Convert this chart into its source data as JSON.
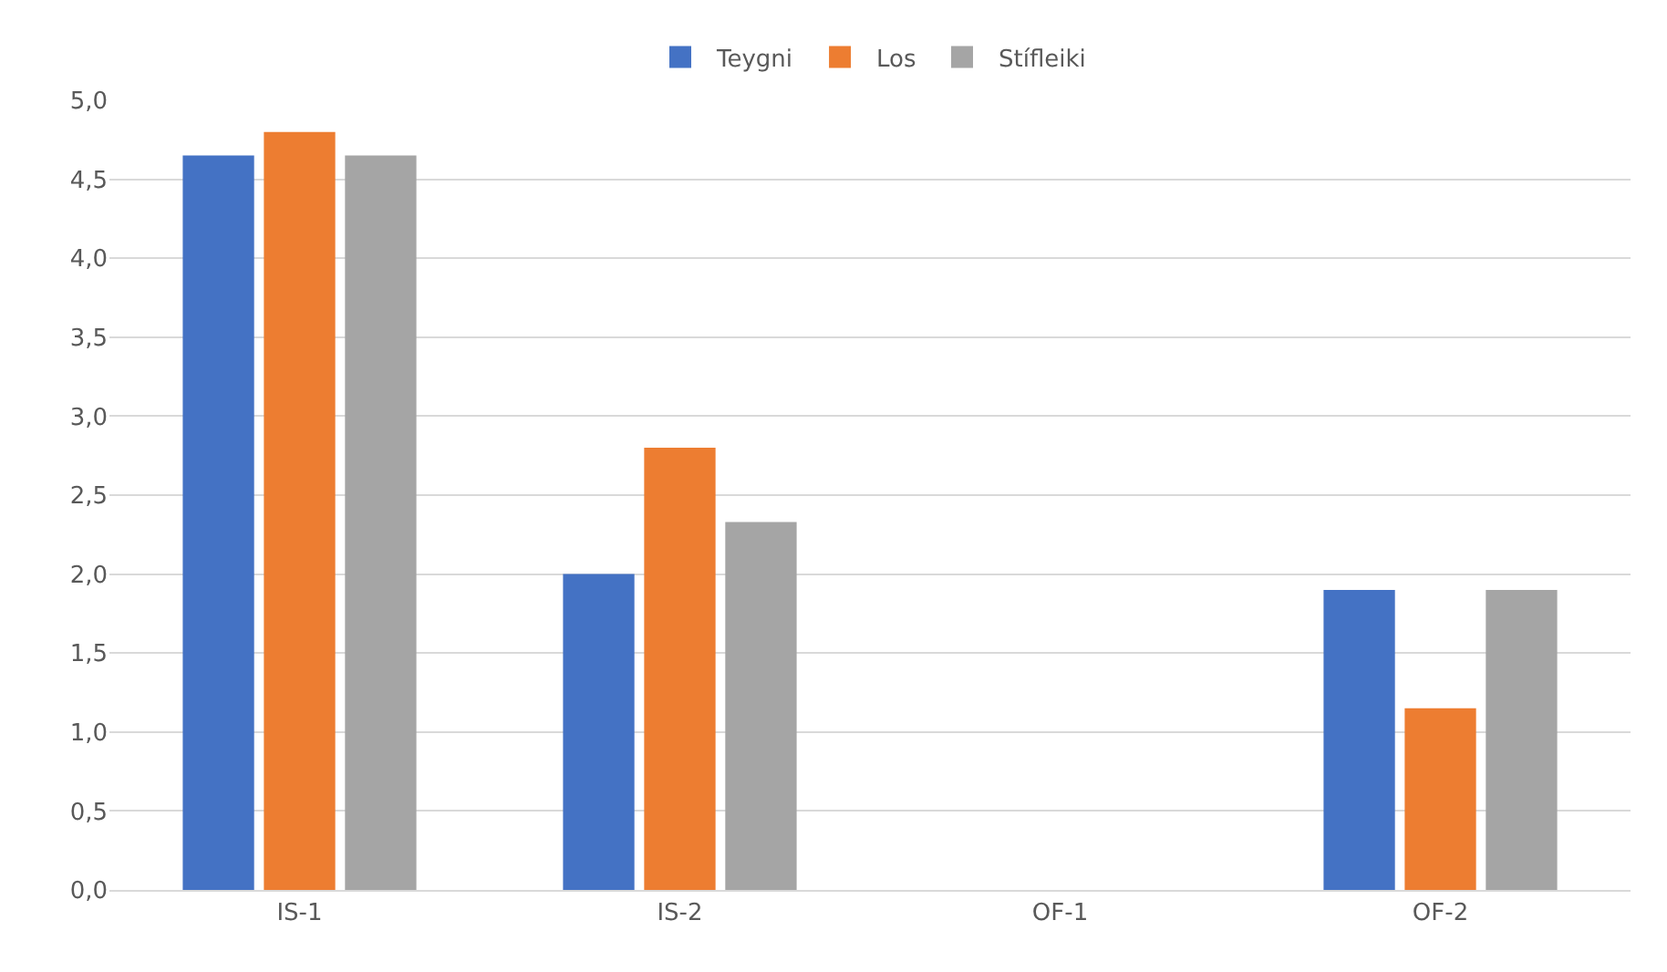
{
  "chart_data": {
    "type": "bar",
    "categories": [
      "IS-1",
      "IS-2",
      "OF-1",
      "OF-2"
    ],
    "series": [
      {
        "name": "Teygni",
        "color": "#4472c4",
        "values": [
          4.65,
          2.0,
          null,
          1.9
        ]
      },
      {
        "name": "Los",
        "color": "#ed7d31",
        "values": [
          4.8,
          2.8,
          null,
          1.15
        ]
      },
      {
        "name": "Stífleiki",
        "color": "#a5a5a5",
        "values": [
          4.65,
          2.33,
          null,
          1.9
        ]
      }
    ],
    "ylim": [
      0,
      5
    ],
    "yticks": [
      {
        "value": 0,
        "label": "0,0"
      },
      {
        "value": 0.5,
        "label": "0,5"
      },
      {
        "value": 1,
        "label": "1,0"
      },
      {
        "value": 1.5,
        "label": "1,5"
      },
      {
        "value": 2,
        "label": "2,0"
      },
      {
        "value": 2.5,
        "label": "2,5"
      },
      {
        "value": 3,
        "label": "3,0"
      },
      {
        "value": 3.5,
        "label": "3,5"
      },
      {
        "value": 4,
        "label": "4,0"
      },
      {
        "value": 4.5,
        "label": "4,5"
      },
      {
        "value": 5,
        "label": "5,0"
      }
    ],
    "grid": "y",
    "legend": "top"
  }
}
